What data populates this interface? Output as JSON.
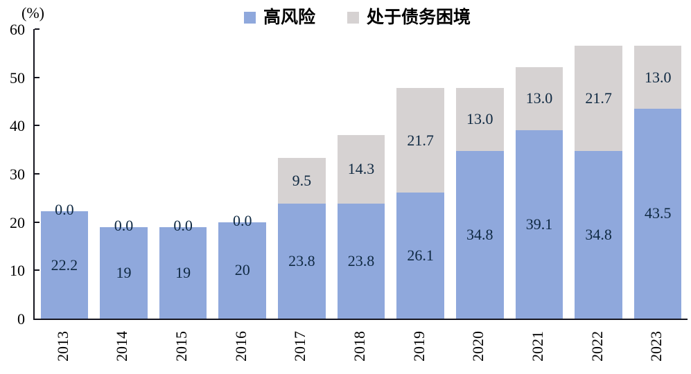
{
  "unit_label": "(%)",
  "colors": {
    "high_risk": "#8FA8DC",
    "debt_distress": "#D6D2D2",
    "data_label": "#0E2841",
    "axis_line": "#14141E",
    "tick_text": "#000000"
  },
  "chart_data": {
    "type": "bar",
    "stacked": true,
    "title": "",
    "xlabel": "",
    "ylabel": "(%)",
    "categories": [
      "2013",
      "2014",
      "2015",
      "2016",
      "2017",
      "2018",
      "2019",
      "2020",
      "2021",
      "2022",
      "2023"
    ],
    "series": [
      {
        "name": "高风险",
        "color": "#8FA8DC",
        "values": [
          22.2,
          19,
          19,
          20,
          23.8,
          23.8,
          26.1,
          34.8,
          39.1,
          34.8,
          43.5
        ],
        "labels": [
          "22.2",
          "19",
          "19",
          "20",
          "23.8",
          "23.8",
          "26.1",
          "34.8",
          "39.1",
          "34.8",
          "43.5"
        ]
      },
      {
        "name": "处于债务困境",
        "color": "#D6D2D2",
        "values": [
          0,
          0,
          0,
          0,
          9.5,
          14.3,
          21.7,
          13.0,
          13.0,
          21.7,
          13.0
        ],
        "labels": [
          "0.0",
          "0.0",
          "0.0",
          "0.0",
          "9.5",
          "14.3",
          "21.7",
          "13.0",
          "13.0",
          "21.7",
          "13.0"
        ]
      }
    ],
    "ylim": [
      0,
      60
    ],
    "yticks": [
      0,
      10,
      20,
      30,
      40,
      50,
      60
    ],
    "grid": false,
    "legend_position": "top"
  }
}
